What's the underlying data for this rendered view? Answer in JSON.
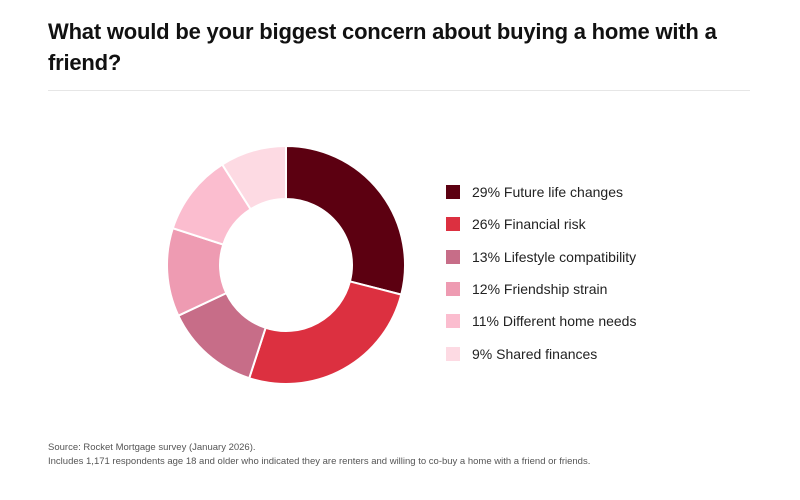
{
  "header": {
    "title": "What would be your biggest concern about buying a home with a friend?"
  },
  "legend": [
    {
      "label": "29% Future life changes",
      "color": "#5c0011"
    },
    {
      "label": "26% Financial risk",
      "color": "#dc3040"
    },
    {
      "label": "13% Lifestyle compatibility",
      "color": "#c76d88"
    },
    {
      "label": "12% Friendship strain",
      "color": "#ee9bb2"
    },
    {
      "label": "11% Different home needs",
      "color": "#fbbdcf"
    },
    {
      "label": "9% Shared finances",
      "color": "#fddae3"
    }
  ],
  "footer": {
    "source": "Source: Rocket Mortgage survey (January 2026).",
    "note": "Includes 1,171 respondents age 18 and older who indicated they are renters and willing to co-buy a home with a friend or friends."
  },
  "chart_data": {
    "type": "pie",
    "subtype": "donut",
    "title": "What would be your biggest concern about buying a home with a friend?",
    "categories": [
      "Future life changes",
      "Financial risk",
      "Lifestyle compatibility",
      "Friendship strain",
      "Different home needs",
      "Shared finances"
    ],
    "values": [
      29,
      26,
      13,
      12,
      11,
      9
    ],
    "unit": "%",
    "colors": [
      "#5c0011",
      "#dc3040",
      "#c76d88",
      "#ee9bb2",
      "#fbbdcf",
      "#fddae3"
    ],
    "start_angle": "12 o'clock",
    "direction": "clockwise",
    "legend_position": "right",
    "source": "Rocket Mortgage survey (January 2026)",
    "note": "Includes 1,171 respondents age 18 and older who indicated they are renters and willing to co-buy a home with a friend or friends."
  }
}
